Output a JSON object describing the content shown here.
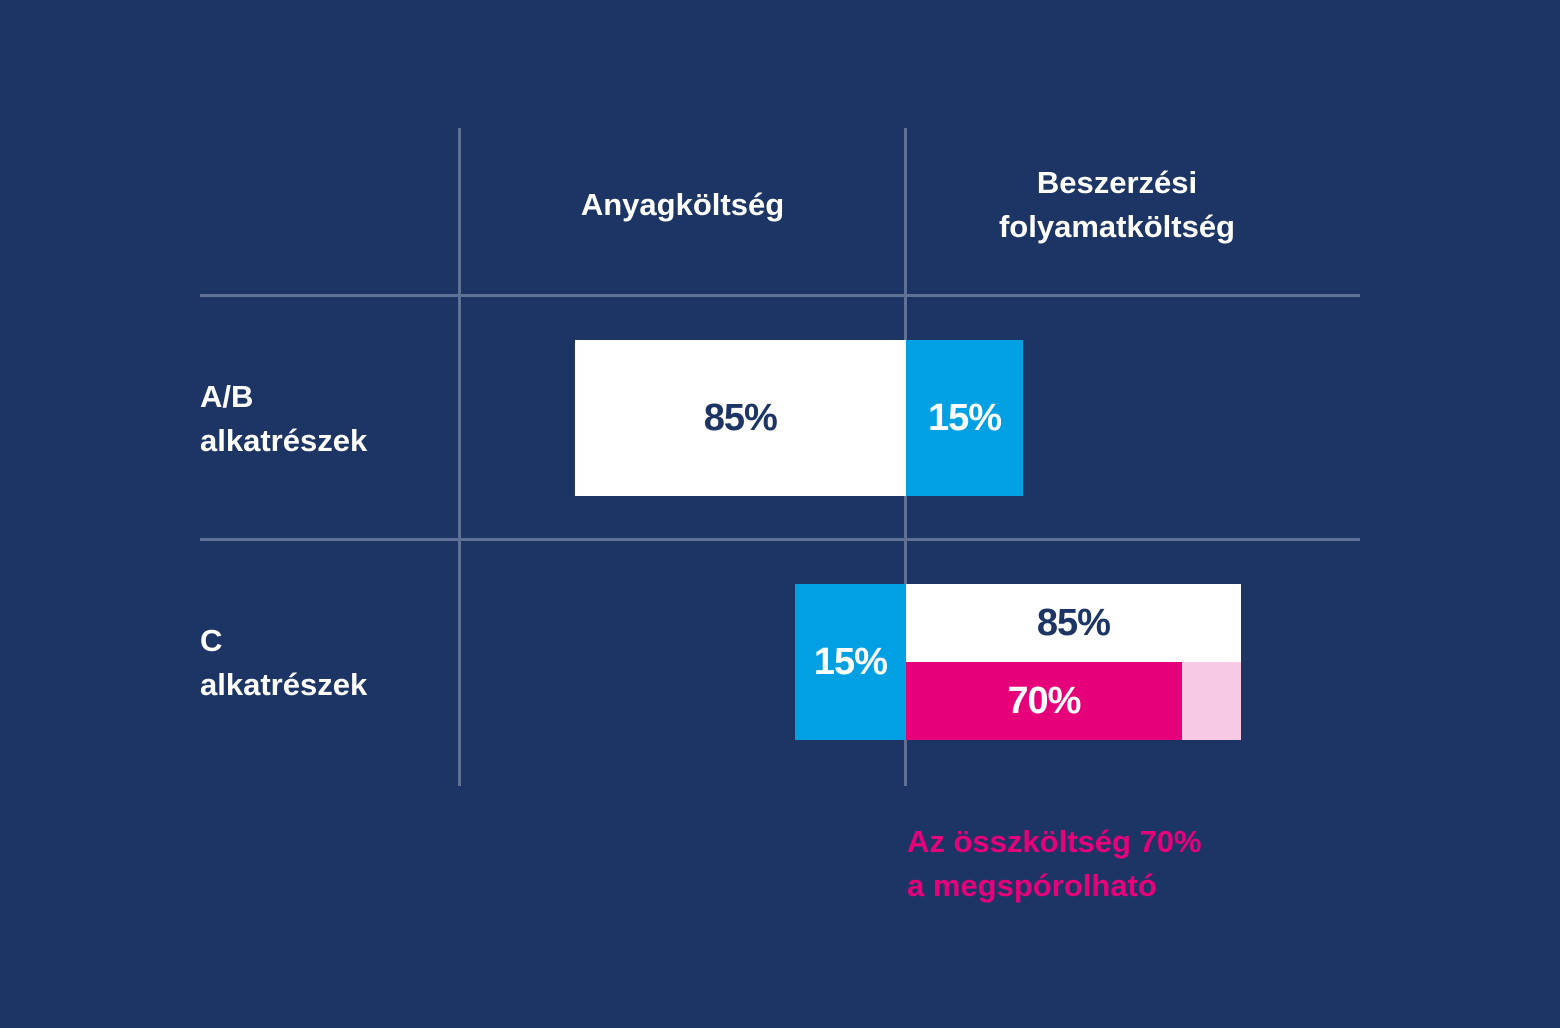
{
  "chart_data": {
    "type": "bar",
    "columns": [
      "Anyagköltség",
      "Beszerzési folyamatköltség"
    ],
    "column_header_lines": [
      [
        "Anyagköltség"
      ],
      [
        "Beszerzési",
        "folyamatköltség"
      ]
    ],
    "rows": [
      {
        "label_lines": [
          "A/B",
          "alkatrészek"
        ],
        "anyagkoltseg": 85,
        "anyagkoltseg_label": "85%",
        "folyamatkoltseg": 15,
        "folyamatkoltseg_label": "15%"
      },
      {
        "label_lines": [
          "C",
          "alkatrészek"
        ],
        "anyagkoltseg": 15,
        "anyagkoltseg_label": "15%",
        "folyamatkoltseg": 85,
        "folyamatkoltseg_label": "85%",
        "megtakaritas": 70,
        "megtakaritas_label": "70%"
      }
    ],
    "annotation_lines": [
      "Az összköltség 70%",
      "a megspórolható"
    ],
    "colors": {
      "background": "#1d3565",
      "white_bar": "#ffffff",
      "blue_bar": "#00a0e3",
      "magenta_bar": "#e6007a",
      "light_pink_bar": "#f7c9e2",
      "grid": "#5f7296",
      "dark_text": "#1d3565"
    }
  }
}
